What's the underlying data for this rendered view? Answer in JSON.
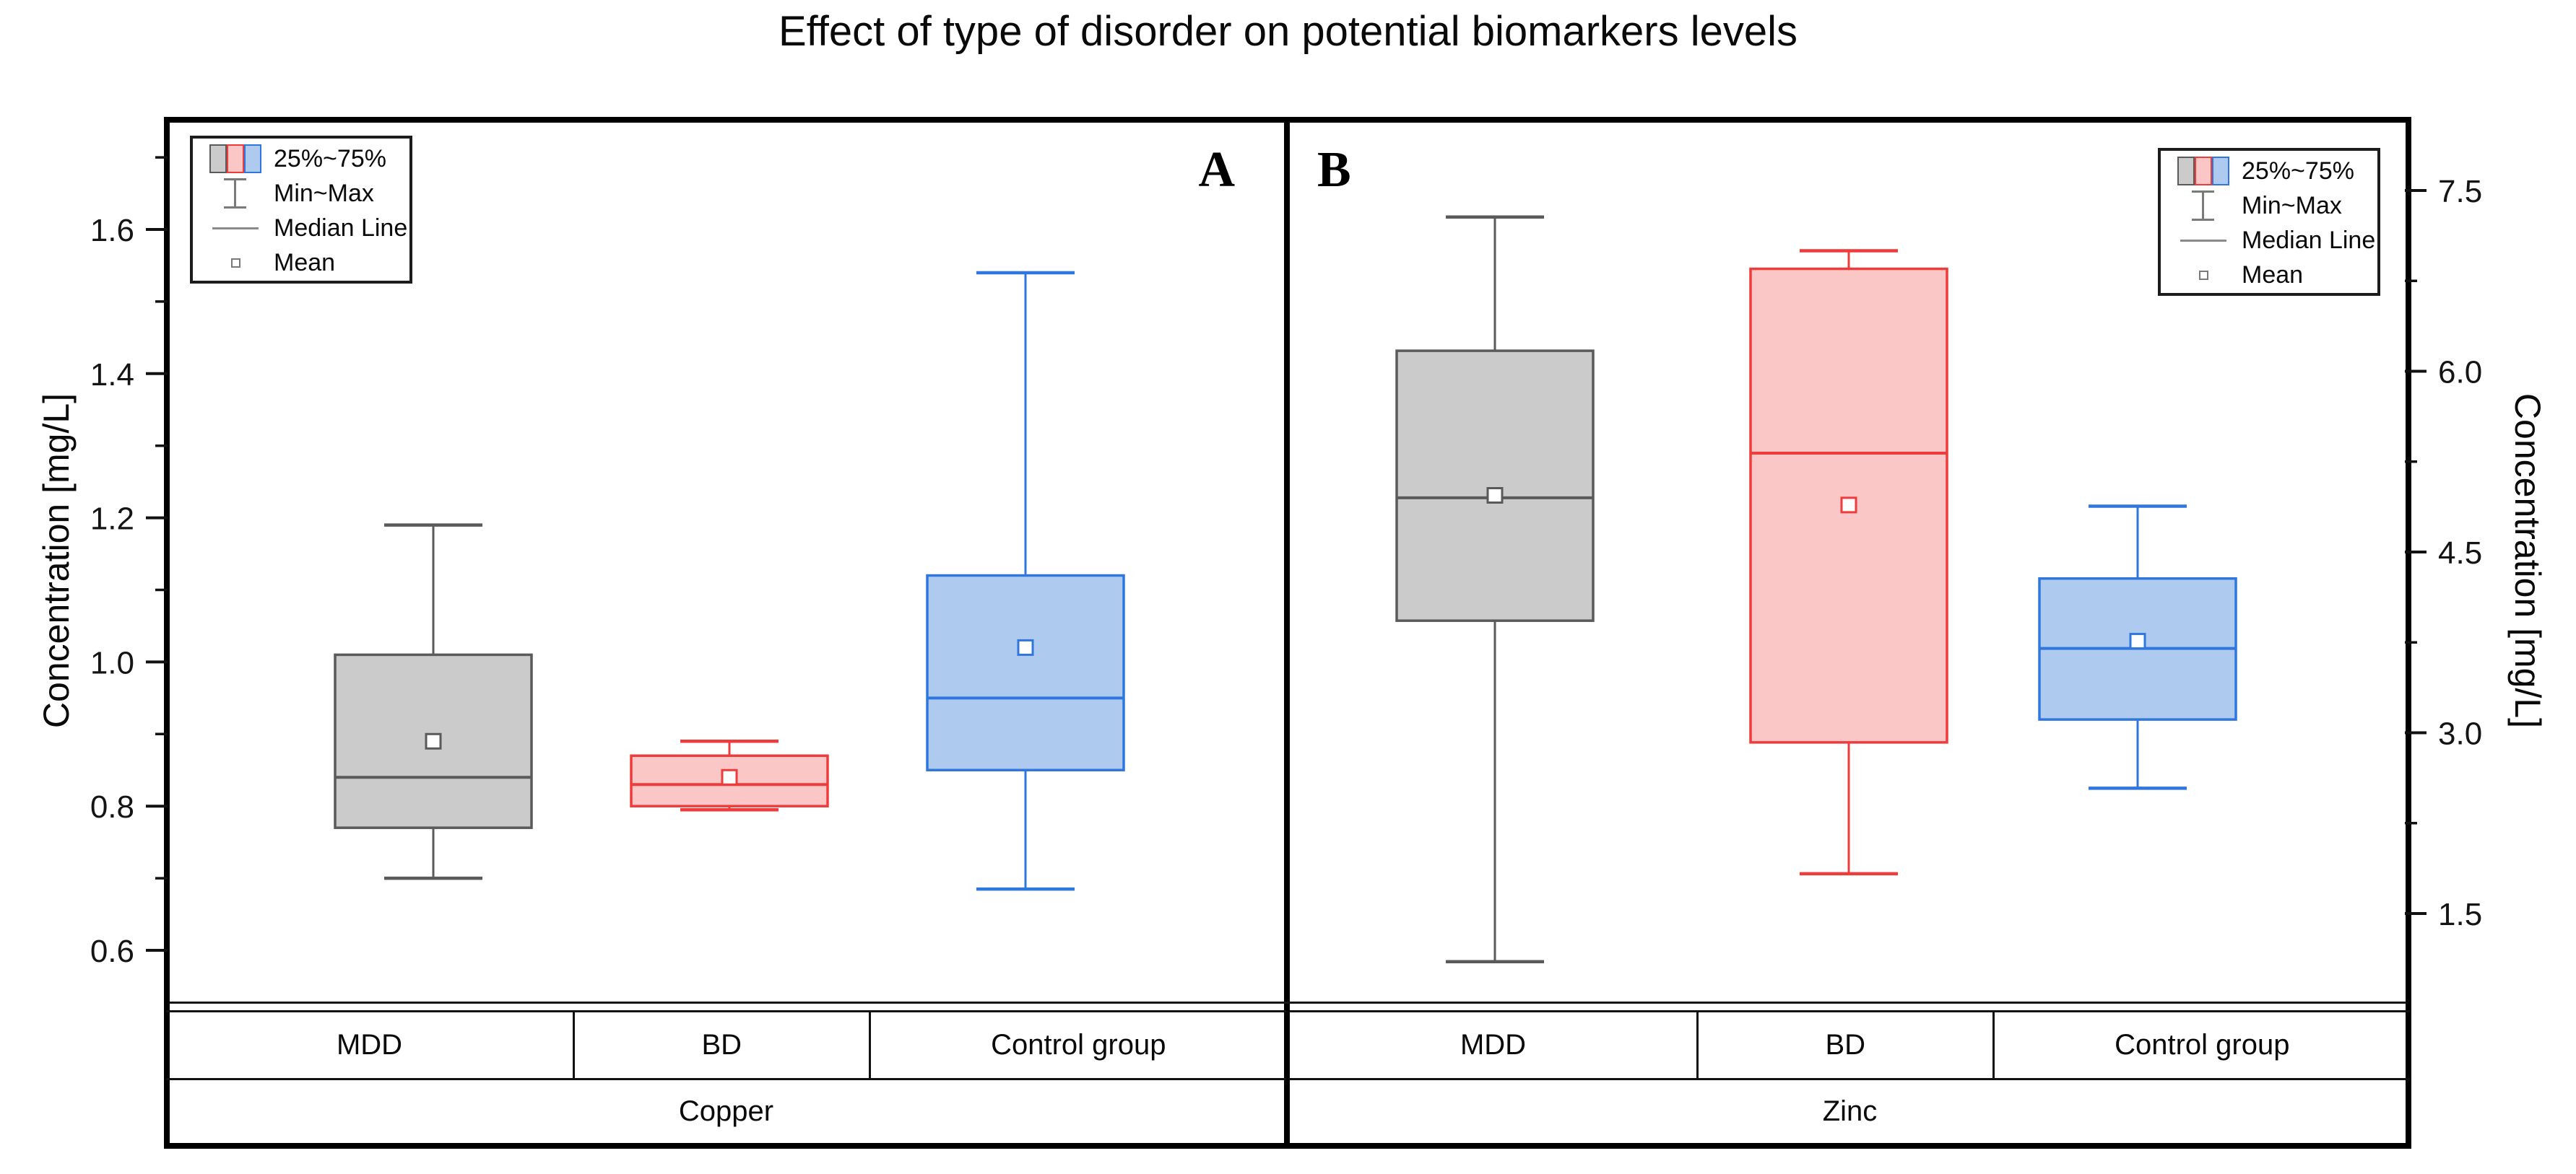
{
  "title": "Effect of type of disorder on potential biomarkers levels",
  "legend": {
    "items": [
      "25%~75%",
      "Min~Max",
      "Median Line",
      "Mean"
    ]
  },
  "axes": {
    "left": {
      "label": "Concentration [mg/L]",
      "major_ticks": [
        "0.6",
        "0.8",
        "1.0",
        "1.2",
        "1.4",
        "1.6"
      ],
      "minor_ticks": [
        0.7,
        0.9,
        1.1,
        1.3,
        1.5,
        1.7
      ]
    },
    "right": {
      "label": "Concentration [mg/L]",
      "major_ticks": [
        "1.5",
        "3.0",
        "4.5",
        "6.0",
        "7.5"
      ],
      "minor_ticks": [
        2.25,
        3.75,
        5.25,
        6.75
      ]
    }
  },
  "panels": [
    {
      "letter": "A",
      "metal": "Copper",
      "categories": [
        "MDD",
        "BD",
        "Control group"
      ]
    },
    {
      "letter": "B",
      "metal": "Zinc",
      "categories": [
        "MDD",
        "BD",
        "Control group"
      ]
    }
  ],
  "colors": {
    "gray": {
      "stroke": "#5a5a5a",
      "fill": "#cbcbcb"
    },
    "red": {
      "stroke": "#ee3b3b",
      "fill": "#fbc7c6"
    },
    "blue": {
      "stroke": "#3077dd",
      "fill": "#aecaef"
    }
  },
  "chart_data": [
    {
      "type": "box",
      "panel": "A",
      "group_label": "Copper",
      "y_axis": "left",
      "ylabel": "Concentration [mg/L]",
      "axis_ticks": [
        0.6,
        0.8,
        1.0,
        1.2,
        1.4,
        1.6
      ],
      "axis_range_visible": [
        0.53,
        1.75
      ],
      "categories": [
        "MDD",
        "BD",
        "Control group"
      ],
      "series": [
        {
          "name": "MDD",
          "color": "gray",
          "min": 0.7,
          "q1": 0.77,
          "median": 0.84,
          "mean": 0.89,
          "q3": 1.01,
          "max": 1.19
        },
        {
          "name": "BD",
          "color": "red",
          "min": 0.795,
          "q1": 0.8,
          "median": 0.83,
          "mean": 0.84,
          "q3": 0.87,
          "max": 0.89
        },
        {
          "name": "Control group",
          "color": "blue",
          "min": 0.685,
          "q1": 0.85,
          "median": 0.95,
          "mean": 1.02,
          "q3": 1.12,
          "max": 1.54
        }
      ]
    },
    {
      "type": "box",
      "panel": "B",
      "group_label": "Zinc",
      "y_axis": "right",
      "ylabel": "Concentration [mg/L]",
      "axis_ticks": [
        1.5,
        3.0,
        4.5,
        6.0,
        7.5
      ],
      "axis_range_visible": [
        0.76,
        8.09
      ],
      "categories": [
        "MDD",
        "BD",
        "Control group"
      ],
      "series": [
        {
          "name": "MDD",
          "color": "gray",
          "min": 1.1,
          "q1": 3.93,
          "median": 4.95,
          "mean": 4.97,
          "q3": 6.17,
          "max": 7.28
        },
        {
          "name": "BD",
          "color": "red",
          "min": 1.83,
          "q1": 2.92,
          "median": 5.32,
          "mean": 4.89,
          "q3": 6.85,
          "max": 7.0
        },
        {
          "name": "Control group",
          "color": "blue",
          "min": 2.54,
          "q1": 3.11,
          "median": 3.7,
          "mean": 3.76,
          "q3": 4.28,
          "max": 4.88
        }
      ]
    }
  ]
}
